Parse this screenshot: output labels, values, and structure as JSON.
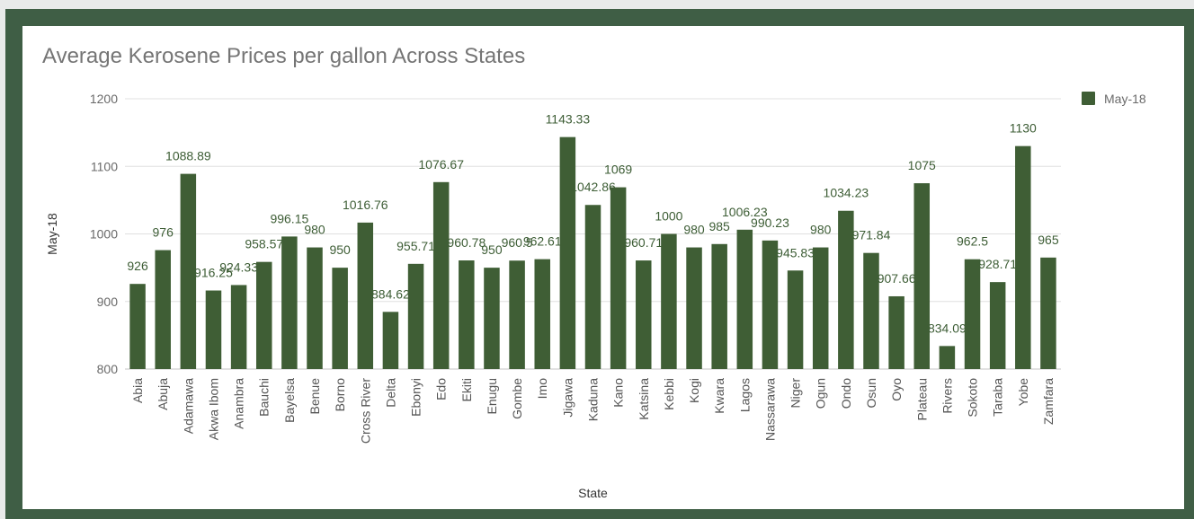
{
  "chart_data": {
    "type": "bar",
    "title": "Average Kerosene Prices per gallon Across States",
    "xlabel": "State",
    "ylabel": "May-18",
    "ylim": [
      800,
      1200
    ],
    "yticks": [
      800,
      900,
      1000,
      1100,
      1200
    ],
    "grid": true,
    "legend_position": "right",
    "bar_color": "#3f5e35",
    "categories": [
      "Abia",
      "Abuja",
      "Adamawa",
      "Akwa Ibom",
      "Anambra",
      "Bauchi",
      "Bayelsa",
      "Benue",
      "Borno",
      "Cross River",
      "Delta",
      "Ebonyi",
      "Edo",
      "Ekiti",
      "Enugu",
      "Gombe",
      "Imo",
      "Jigawa",
      "Kaduna",
      "Kano",
      "Katsina",
      "Kebbi",
      "Kogi",
      "Kwara",
      "Lagos",
      "Nassarawa",
      "Niger",
      "Ogun",
      "Ondo",
      "Osun",
      "Oyo",
      "Plateau",
      "Rivers",
      "Sokoto",
      "Taraba",
      "Yobe",
      "Zamfara"
    ],
    "series": [
      {
        "name": "May-18",
        "values": [
          926,
          976,
          1088.89,
          916.25,
          924.33,
          958.57,
          996.15,
          980,
          950,
          1016.76,
          884.62,
          955.71,
          1076.67,
          960.78,
          950,
          960.5,
          962.61,
          1143.33,
          1042.86,
          1069,
          960.71,
          1000,
          980,
          985,
          1006.23,
          990.23,
          945.83,
          980,
          1034.23,
          971.84,
          907.66,
          1075,
          834.09,
          962.5,
          928.71,
          1130,
          965
        ]
      }
    ]
  }
}
